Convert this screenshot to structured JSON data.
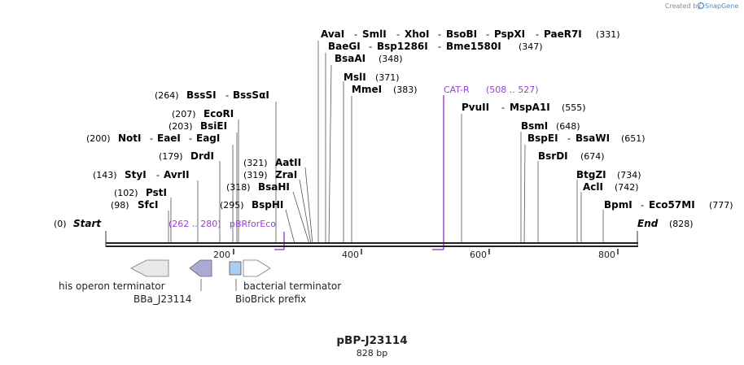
{
  "credit": {
    "prefix": "Created by",
    "brand": "SnapGene"
  },
  "map": {
    "title": "pBP-J23114",
    "subtitle": "828 bp",
    "start_label": "Start",
    "start_pos": "(0)",
    "end_label": "End",
    "end_pos": "(828)",
    "ticks": [
      "200",
      "400",
      "600",
      "800"
    ],
    "color_primer": "#9b3fd1",
    "color_arrow_gray": "#e8e8e8",
    "color_arrow_purple": "#a9abd6",
    "color_box_blue": "#a8cff0"
  },
  "sites_left": [
    {
      "name": "BssSI",
      "extra": "BssSαI",
      "pos": "(264)"
    },
    {
      "name": "EcoRI",
      "pos": "(207)"
    },
    {
      "name": "BsiEI",
      "pos": "(203)"
    },
    {
      "name": "NotI",
      "extra1": "EaeI",
      "extra2": "EagI",
      "pos": "(200)"
    },
    {
      "name": "DrdI",
      "pos": "(179)"
    },
    {
      "name": "StyI",
      "extra": "AvrII",
      "pos": "(143)"
    },
    {
      "name": "PstI",
      "pos": "(102)"
    },
    {
      "name": "SfcI",
      "pos": "(98)"
    },
    {
      "name": "AatII",
      "pos": "(321)"
    },
    {
      "name": "ZraI",
      "pos": "(319)"
    },
    {
      "name": "BsaHI",
      "pos": "(318)"
    },
    {
      "name": "BspHI",
      "pos": "(295)"
    }
  ],
  "sites_right": [
    {
      "names": [
        "AvaI",
        "SmlI",
        "XhoI",
        "BsoBI",
        "PspXI",
        "PaeR7I"
      ],
      "pos": "(331)"
    },
    {
      "names": [
        "BaeGI",
        "Bsp1286I",
        "Bme1580I"
      ],
      "pos": "(347)"
    },
    {
      "names": [
        "BsaAI"
      ],
      "pos": "(348)"
    },
    {
      "names": [
        "MslI"
      ],
      "pos": "(371)"
    },
    {
      "names": [
        "MmeI"
      ],
      "pos": "(383)"
    },
    {
      "names": [
        "PvuII",
        "MspA1I"
      ],
      "pos": "(555)"
    },
    {
      "names": [
        "BsmI"
      ],
      "pos": "(648)"
    },
    {
      "names": [
        "BspEI",
        "BsaWI"
      ],
      "pos": "(651)"
    },
    {
      "names": [
        "BsrDI"
      ],
      "pos": "(674)"
    },
    {
      "names": [
        "BtgZI"
      ],
      "pos": "(734)"
    },
    {
      "names": [
        "AclI"
      ],
      "pos": "(742)"
    },
    {
      "names": [
        "BpmI",
        "Eco57MI"
      ],
      "pos": "(777)"
    }
  ],
  "primers": [
    {
      "name": "CAT-R",
      "range": "(508 .. 527)"
    },
    {
      "name": "pBRforEco",
      "range": "(262 .. 280)"
    }
  ],
  "features": [
    {
      "name": "his operon terminator"
    },
    {
      "name": "BBa_J23114"
    },
    {
      "name": "BioBrick prefix"
    },
    {
      "name": "bacterial terminator"
    }
  ]
}
